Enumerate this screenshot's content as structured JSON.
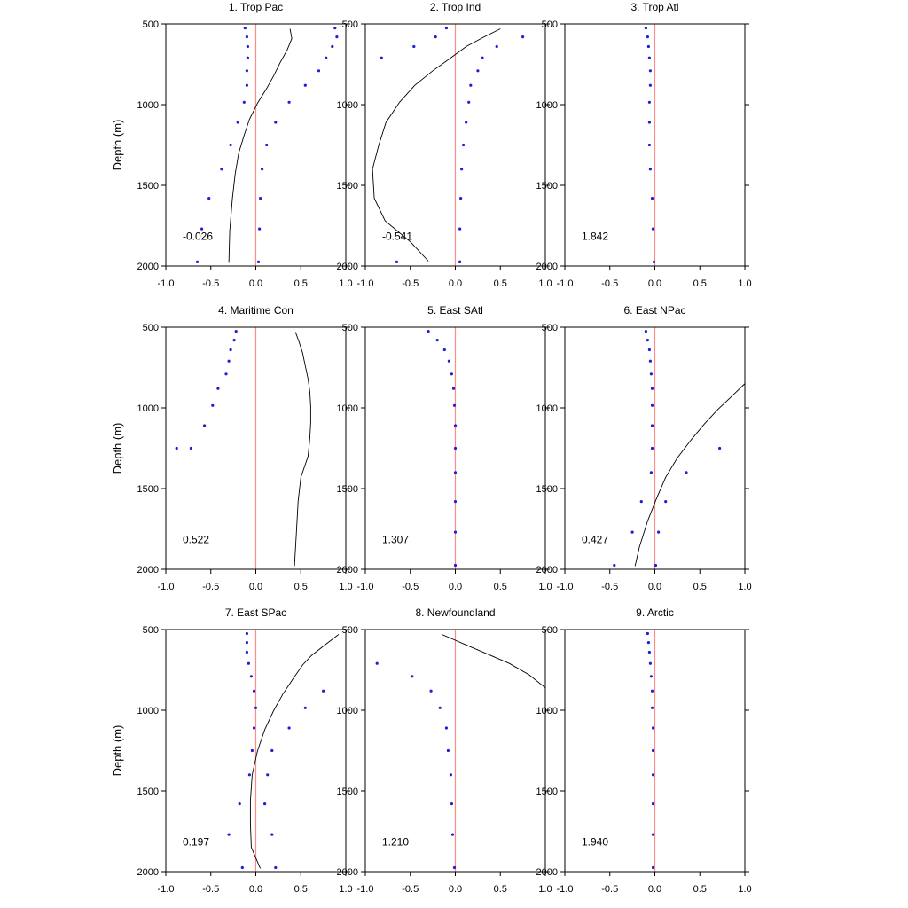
{
  "figure": {
    "ylabel": "Depth (m)",
    "colors": {
      "curve": "#000000",
      "zero_line": "#ff8a8a",
      "dots": "#1f1fd8",
      "frame": "#000000"
    }
  },
  "chart_data": [
    {
      "type": "scatter",
      "title": "1. Trop Pac",
      "annotation": "-0.026",
      "xlim": [
        -1,
        1
      ],
      "ylim": [
        2000,
        500
      ],
      "y_reversed": true,
      "xticks": [
        "-1.0",
        "-0.5",
        "0.0",
        "0.5",
        "1.0"
      ],
      "yticks": [
        "500",
        "1000",
        "1500",
        "2000"
      ],
      "curve": {
        "x": [
          0.38,
          0.4,
          0.35,
          0.27,
          0.2,
          0.12,
          0.02,
          -0.07,
          -0.13,
          -0.19,
          -0.23,
          -0.26,
          -0.29,
          -0.3
        ],
        "y": [
          530,
          590,
          660,
          740,
          820,
          900,
          990,
          1090,
          1190,
          1300,
          1430,
          1580,
          1780,
          1980
        ]
      },
      "dots_left": {
        "x": [
          -0.12,
          -0.1,
          -0.09,
          -0.09,
          -0.1,
          -0.1,
          -0.13,
          -0.2,
          -0.28,
          -0.38,
          -0.52,
          -0.6,
          -0.65
        ],
        "y": [
          525,
          580,
          640,
          710,
          790,
          880,
          985,
          1110,
          1250,
          1400,
          1580,
          1770,
          1975
        ]
      },
      "dots_right": {
        "x": [
          0.88,
          0.9,
          0.85,
          0.78,
          0.7,
          0.55,
          0.37,
          0.22,
          0.12,
          0.07,
          0.05,
          0.04,
          0.03
        ],
        "y": [
          525,
          580,
          640,
          710,
          790,
          880,
          985,
          1110,
          1250,
          1400,
          1580,
          1770,
          1975
        ]
      }
    },
    {
      "type": "scatter",
      "title": "2. Trop Ind",
      "annotation": "-0.541",
      "xlim": [
        -1,
        1
      ],
      "ylim": [
        2000,
        500
      ],
      "y_reversed": true,
      "xticks": [
        "-1.0",
        "-0.5",
        "0.0",
        "0.5",
        "1.0"
      ],
      "yticks": [
        "500",
        "1000",
        "1500",
        "2000"
      ],
      "curve": {
        "x": [
          0.5,
          0.32,
          0.12,
          -0.05,
          -0.25,
          -0.45,
          -0.62,
          -0.77,
          -0.85,
          -0.92,
          -0.9,
          -0.78,
          -0.5,
          -0.3
        ],
        "y": [
          530,
          580,
          640,
          710,
          790,
          880,
          985,
          1110,
          1250,
          1400,
          1580,
          1720,
          1850,
          1970
        ]
      },
      "dots_left": {
        "x": [
          -0.1,
          -0.22,
          -0.46,
          -0.82,
          -0.65
        ],
        "y": [
          525,
          580,
          640,
          710,
          1975
        ]
      },
      "dots_right": {
        "x": [
          0.75,
          0.46,
          0.3,
          0.25,
          0.17,
          0.15,
          0.12,
          0.09,
          0.07,
          0.06,
          0.05,
          0.05,
          0.05
        ],
        "y": [
          580,
          640,
          710,
          790,
          880,
          985,
          1110,
          1250,
          1400,
          1580,
          1770,
          1975,
          1975
        ]
      }
    },
    {
      "type": "scatter",
      "title": "3. Trop Atl",
      "annotation": "1.842",
      "xlim": [
        -1,
        1
      ],
      "ylim": [
        2000,
        500
      ],
      "y_reversed": true,
      "xticks": [
        "-1.0",
        "-0.5",
        "0.0",
        "0.5",
        "1.0"
      ],
      "yticks": [
        "500",
        "1000",
        "1500",
        "2000"
      ],
      "curve": {
        "x": [],
        "y": []
      },
      "dots_left": {
        "x": [
          -0.1,
          -0.08,
          -0.07,
          -0.06,
          -0.05,
          -0.05,
          -0.06,
          -0.06,
          -0.06,
          -0.05,
          -0.03,
          -0.02,
          -0.01
        ],
        "y": [
          525,
          580,
          640,
          710,
          790,
          880,
          985,
          1110,
          1250,
          1400,
          1580,
          1770,
          1975
        ]
      },
      "dots_right": {
        "x": [],
        "y": []
      }
    },
    {
      "type": "scatter",
      "title": "4. Maritime Con",
      "annotation": "0.522",
      "xlim": [
        -1,
        1
      ],
      "ylim": [
        2000,
        500
      ],
      "y_reversed": true,
      "xticks": [
        "-1.0",
        "-0.5",
        "0.0",
        "0.5",
        "1.0"
      ],
      "yticks": [
        "500",
        "1000",
        "1500",
        "2000"
      ],
      "curve": {
        "x": [
          0.44,
          0.48,
          0.52,
          0.55,
          0.58,
          0.6,
          0.61,
          0.61,
          0.6,
          0.58,
          0.5,
          0.47,
          0.45,
          0.43
        ],
        "y": [
          530,
          590,
          660,
          740,
          820,
          900,
          990,
          1090,
          1190,
          1300,
          1430,
          1580,
          1780,
          1980
        ]
      },
      "dots_left": {
        "x": [
          -0.22,
          -0.24,
          -0.28,
          -0.3,
          -0.33,
          -0.42,
          -0.48,
          -0.57,
          -0.72,
          -0.88
        ],
        "y": [
          525,
          580,
          640,
          710,
          790,
          880,
          985,
          1110,
          1250,
          1250
        ]
      },
      "dots_right": {
        "x": [],
        "y": []
      }
    },
    {
      "type": "scatter",
      "title": "5. East SAtl",
      "annotation": "1.307",
      "xlim": [
        -1,
        1
      ],
      "ylim": [
        2000,
        500
      ],
      "y_reversed": true,
      "xticks": [
        "-1.0",
        "-0.5",
        "0.0",
        "0.5",
        "1.0"
      ],
      "yticks": [
        "500",
        "1000",
        "1500",
        "2000"
      ],
      "curve": {
        "x": [],
        "y": []
      },
      "dots_left": {
        "x": [
          -0.3,
          -0.2,
          -0.12,
          -0.07,
          -0.04,
          -0.02,
          -0.01,
          0.0,
          0.0,
          0.0,
          0.0,
          0.0,
          0.0
        ],
        "y": [
          525,
          580,
          640,
          710,
          790,
          880,
          985,
          1110,
          1250,
          1400,
          1580,
          1770,
          1975
        ]
      },
      "dots_right": {
        "x": [],
        "y": []
      }
    },
    {
      "type": "scatter",
      "title": "6. East NPac",
      "annotation": "0.427",
      "xlim": [
        -1,
        1
      ],
      "ylim": [
        2000,
        500
      ],
      "y_reversed": true,
      "xticks": [
        "-1.0",
        "-0.5",
        "0.0",
        "0.5",
        "1.0"
      ],
      "yticks": [
        "500",
        "1000",
        "1500",
        "2000"
      ],
      "curve": {
        "x": [
          1.0,
          0.85,
          0.7,
          0.55,
          0.4,
          0.25,
          0.12,
          0.02,
          -0.08,
          -0.17,
          -0.22
        ],
        "y": [
          850,
          930,
          1010,
          1100,
          1200,
          1310,
          1430,
          1560,
          1700,
          1860,
          1980
        ]
      },
      "dots_left": {
        "x": [
          -0.1,
          -0.08,
          -0.06,
          -0.05,
          -0.04,
          -0.03,
          -0.03,
          -0.03,
          -0.03,
          -0.04,
          -0.15,
          -0.25,
          -0.45
        ],
        "y": [
          525,
          580,
          640,
          710,
          790,
          880,
          985,
          1110,
          1250,
          1400,
          1580,
          1770,
          1975
        ]
      },
      "dots_right": {
        "x": [
          0.72,
          0.35,
          0.12,
          0.04,
          0.01
        ],
        "y": [
          1250,
          1400,
          1580,
          1770,
          1975
        ]
      }
    },
    {
      "type": "scatter",
      "title": "7. East SPac",
      "annotation": "0.197",
      "xlim": [
        -1,
        1
      ],
      "ylim": [
        2000,
        500
      ],
      "y_reversed": true,
      "xticks": [
        "-1.0",
        "-0.5",
        "0.0",
        "0.5",
        "1.0"
      ],
      "yticks": [
        "500",
        "1000",
        "1500",
        "2000"
      ],
      "curve": {
        "x": [
          0.92,
          0.78,
          0.62,
          0.52,
          0.42,
          0.3,
          0.2,
          0.1,
          0.02,
          -0.04,
          -0.06,
          -0.06,
          -0.05,
          0.05
        ],
        "y": [
          530,
          590,
          660,
          720,
          800,
          900,
          1000,
          1120,
          1250,
          1400,
          1560,
          1700,
          1850,
          1980
        ]
      },
      "dots_left": {
        "x": [
          -0.1,
          -0.1,
          -0.1,
          -0.08,
          -0.05,
          -0.02,
          0.0,
          -0.02,
          -0.04,
          -0.07,
          -0.18,
          -0.3,
          -0.15
        ],
        "y": [
          525,
          580,
          640,
          710,
          790,
          880,
          985,
          1110,
          1250,
          1400,
          1580,
          1770,
          1975
        ]
      },
      "dots_right": {
        "x": [
          0.75,
          0.55,
          0.37,
          0.18,
          0.13,
          0.1,
          0.18,
          0.22
        ],
        "y": [
          880,
          985,
          1110,
          1250,
          1400,
          1580,
          1770,
          1975
        ]
      }
    },
    {
      "type": "scatter",
      "title": "8. Newfoundland",
      "annotation": "1.210",
      "xlim": [
        -1,
        1
      ],
      "ylim": [
        2000,
        500
      ],
      "y_reversed": true,
      "xticks": [
        "-1.0",
        "-0.5",
        "0.0",
        "0.5",
        "1.0"
      ],
      "yticks": [
        "500",
        "1000",
        "1500",
        "2000"
      ],
      "curve": {
        "x": [
          -0.15,
          0.1,
          0.35,
          0.6,
          0.82,
          1.02
        ],
        "y": [
          530,
          590,
          650,
          710,
          780,
          870
        ]
      },
      "dots_left": {
        "x": [
          -0.87,
          -0.48,
          -0.27,
          -0.17,
          -0.1,
          -0.08,
          -0.05,
          -0.04,
          -0.03,
          -0.01
        ],
        "y": [
          710,
          790,
          880,
          985,
          1110,
          1250,
          1400,
          1580,
          1770,
          1975
        ]
      },
      "dots_right": {
        "x": [],
        "y": []
      }
    },
    {
      "type": "scatter",
      "title": "9. Arctic",
      "annotation": "1.940",
      "xlim": [
        -1,
        1
      ],
      "ylim": [
        2000,
        500
      ],
      "y_reversed": true,
      "xticks": [
        "-1.0",
        "-0.5",
        "0.0",
        "0.5",
        "1.0"
      ],
      "yticks": [
        "500",
        "1000",
        "1500",
        "2000"
      ],
      "curve": {
        "x": [],
        "y": []
      },
      "dots_left": {
        "x": [
          -0.08,
          -0.07,
          -0.06,
          -0.05,
          -0.04,
          -0.03,
          -0.03,
          -0.02,
          -0.02,
          -0.02,
          -0.02,
          -0.02,
          -0.02
        ],
        "y": [
          525,
          580,
          640,
          710,
          790,
          880,
          985,
          1110,
          1250,
          1400,
          1580,
          1770,
          1975
        ]
      },
      "dots_right": {
        "x": [],
        "y": []
      }
    }
  ]
}
